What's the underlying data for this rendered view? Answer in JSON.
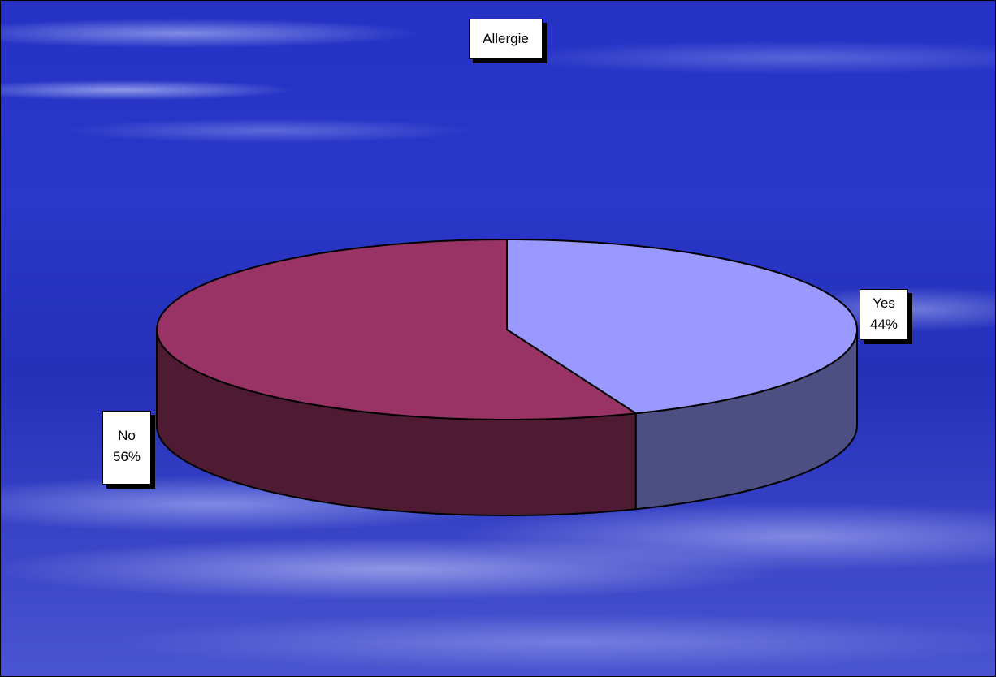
{
  "chart_data": {
    "type": "pie",
    "title": "Allergie",
    "slices": [
      {
        "label": "Yes",
        "percent_label": "44%",
        "value": 44,
        "color": "#9a99ff",
        "side_color": "#4d4e82"
      },
      {
        "label": "No",
        "percent_label": "56%",
        "value": 56,
        "color": "#993366",
        "side_color": "#4e1b33"
      }
    ],
    "style": "3d",
    "background": "blue-clouds"
  }
}
